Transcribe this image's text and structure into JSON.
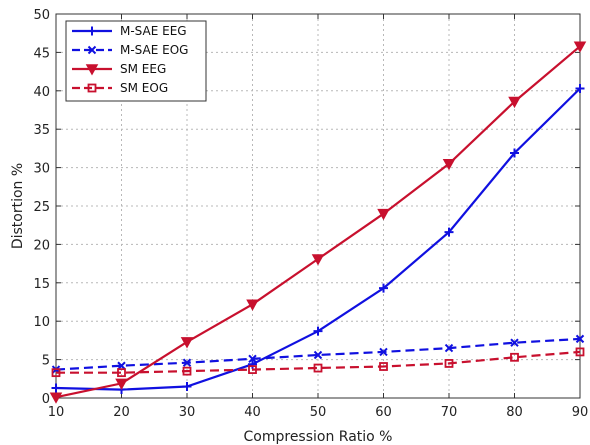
{
  "chart_data": {
    "type": "line",
    "xlabel": "Compression Ratio %",
    "ylabel": "Distortion %",
    "xlim": [
      10,
      90
    ],
    "ylim": [
      0,
      50
    ],
    "x_ticks": [
      10,
      20,
      30,
      40,
      50,
      60,
      70,
      80,
      90
    ],
    "y_ticks": [
      0,
      5,
      10,
      15,
      20,
      25,
      30,
      35,
      40,
      45,
      50
    ],
    "grid": true,
    "legend_position": "top-left",
    "x": [
      10,
      20,
      30,
      40,
      50,
      60,
      70,
      80,
      90
    ],
    "series": [
      {
        "name": "M-SAE EEG",
        "color": "#1010e0",
        "line": "solid",
        "marker": "plus",
        "values": [
          1.3,
          1.1,
          1.5,
          4.4,
          8.7,
          14.3,
          21.6,
          31.9,
          40.3
        ]
      },
      {
        "name": "M-SAE EOG",
        "color": "#1010e0",
        "line": "dashed",
        "marker": "x",
        "values": [
          3.7,
          4.2,
          4.6,
          5.1,
          5.6,
          6.0,
          6.5,
          7.2,
          7.7
        ]
      },
      {
        "name": "SM EEG",
        "color": "#c8102e",
        "line": "solid",
        "marker": "triangle-down",
        "values": [
          0.1,
          1.9,
          7.3,
          12.2,
          18.1,
          24.0,
          30.5,
          38.6,
          45.8
        ]
      },
      {
        "name": "SM EOG",
        "color": "#c8102e",
        "line": "dashed",
        "marker": "square",
        "values": [
          3.3,
          3.3,
          3.5,
          3.7,
          3.9,
          4.1,
          4.5,
          5.3,
          6.0
        ]
      }
    ]
  }
}
